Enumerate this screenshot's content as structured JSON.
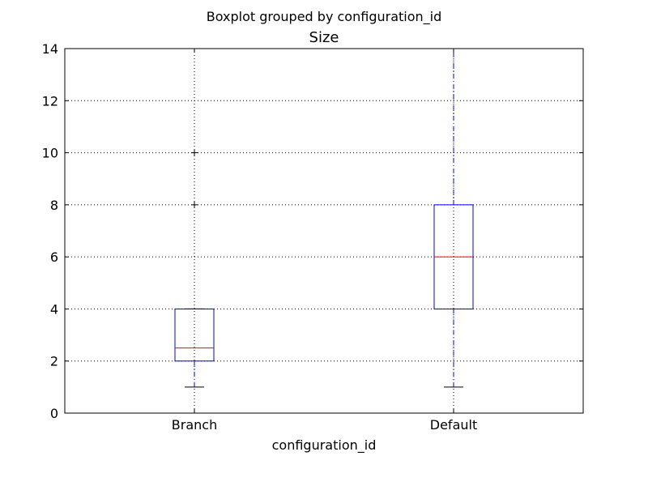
{
  "chart_data": {
    "type": "boxplot",
    "suptitle": "Boxplot grouped by configuration_id",
    "title": "Size",
    "xlabel": "configuration_id",
    "ylabel": "",
    "categories": [
      "Branch",
      "Default"
    ],
    "ylim": [
      0,
      14
    ],
    "yticks": [
      0,
      2,
      4,
      6,
      8,
      10,
      12,
      14
    ],
    "grid": true,
    "legend": "none",
    "boxes": [
      {
        "category": "Branch",
        "whisker_low": 1,
        "q1": 2,
        "median": 2.5,
        "q3": 4,
        "whisker_high": 4,
        "outliers": [
          8,
          10
        ]
      },
      {
        "category": "Default",
        "whisker_low": 1,
        "q1": 4,
        "median": 6,
        "q3": 8,
        "whisker_high": 14,
        "outliers": []
      }
    ],
    "colors": {
      "box": "#0000ff",
      "median": "#ff0000",
      "whisker": "#0000ff",
      "cap": "#000000",
      "outlier": "#000000",
      "grid": "#000000"
    }
  }
}
